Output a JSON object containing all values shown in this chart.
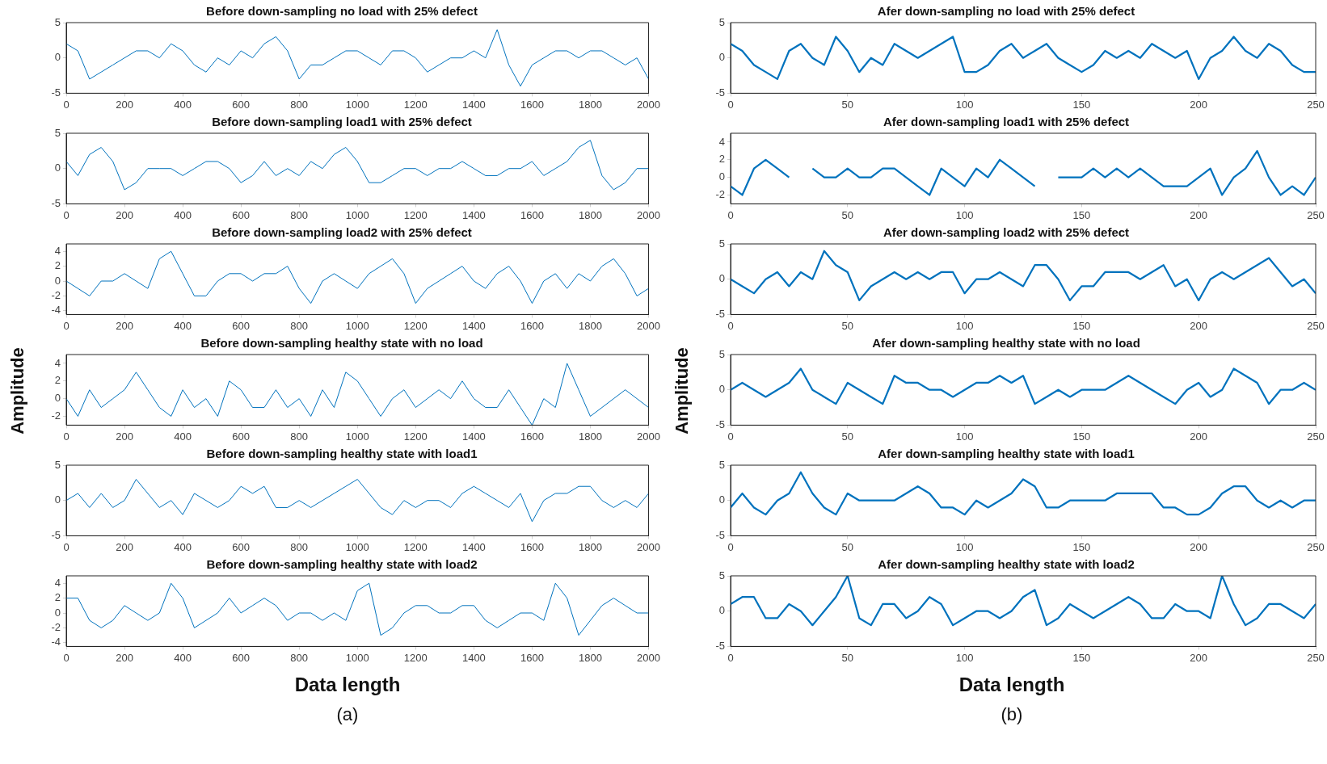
{
  "chart_data": [
    {
      "type": "line",
      "title": "Before down-sampling no load with 25% defect",
      "color": "#0072bd",
      "grid": false,
      "xlim": [
        0,
        2000
      ],
      "xticks": [
        0,
        200,
        400,
        600,
        800,
        1000,
        1200,
        1400,
        1600,
        1800,
        2000
      ],
      "ylim": [
        -5,
        5
      ],
      "yticks": [
        -5,
        0,
        5
      ],
      "x": [
        0,
        40,
        80,
        120,
        160,
        200,
        240,
        280,
        320,
        360,
        400,
        440,
        480,
        520,
        560,
        600,
        640,
        680,
        720,
        760,
        800,
        840,
        880,
        920,
        960,
        1000,
        1040,
        1080,
        1120,
        1160,
        1200,
        1240,
        1280,
        1320,
        1360,
        1400,
        1440,
        1480,
        1520,
        1560,
        1600,
        1640,
        1680,
        1720,
        1760,
        1800,
        1840,
        1880,
        1920,
        1960,
        2000
      ],
      "values": [
        2,
        1,
        -3,
        -2,
        -1,
        0,
        1,
        1,
        0,
        2,
        1,
        -1,
        -2,
        0,
        -1,
        1,
        0,
        2,
        3,
        1,
        -3,
        -1,
        -1,
        0,
        1,
        1,
        0,
        -1,
        1,
        1,
        0,
        -2,
        -1,
        0,
        0,
        1,
        0,
        4,
        -1,
        -4,
        -1,
        0,
        1,
        1,
        0,
        1,
        1,
        0,
        -1,
        0,
        -3
      ]
    },
    {
      "type": "line",
      "title": "Before down-sampling load1 with 25% defect",
      "color": "#0072bd",
      "grid": false,
      "xlim": [
        0,
        2000
      ],
      "xticks": [
        0,
        200,
        400,
        600,
        800,
        1000,
        1200,
        1400,
        1600,
        1800,
        2000
      ],
      "ylim": [
        -5,
        5
      ],
      "yticks": [
        -5,
        0,
        5
      ],
      "x": [
        0,
        40,
        80,
        120,
        160,
        200,
        240,
        280,
        320,
        360,
        400,
        440,
        480,
        520,
        560,
        600,
        640,
        680,
        720,
        760,
        800,
        840,
        880,
        920,
        960,
        1000,
        1040,
        1080,
        1120,
        1160,
        1200,
        1240,
        1280,
        1320,
        1360,
        1400,
        1440,
        1480,
        1520,
        1560,
        1600,
        1640,
        1680,
        1720,
        1760,
        1800,
        1840,
        1880,
        1920,
        1960,
        2000
      ],
      "values": [
        1,
        -1,
        2,
        3,
        1,
        -3,
        -2,
        0,
        0,
        0,
        -1,
        0,
        1,
        1,
        0,
        -2,
        -1,
        1,
        -1,
        0,
        -1,
        1,
        0,
        2,
        3,
        1,
        -2,
        -2,
        -1,
        0,
        0,
        -1,
        0,
        0,
        1,
        0,
        -1,
        -1,
        0,
        0,
        1,
        -1,
        0,
        1,
        3,
        4,
        -1,
        -3,
        -2,
        0,
        0
      ]
    },
    {
      "type": "line",
      "title": "Before down-sampling load2 with 25% defect",
      "color": "#0072bd",
      "grid": false,
      "xlim": [
        0,
        2000
      ],
      "xticks": [
        0,
        200,
        400,
        600,
        800,
        1000,
        1200,
        1400,
        1600,
        1800,
        2000
      ],
      "ylim": [
        -4.5,
        5
      ],
      "yticks": [
        -4,
        -2,
        0,
        2,
        4
      ],
      "x": [
        0,
        40,
        80,
        120,
        160,
        200,
        240,
        280,
        320,
        360,
        400,
        440,
        480,
        520,
        560,
        600,
        640,
        680,
        720,
        760,
        800,
        840,
        880,
        920,
        960,
        1000,
        1040,
        1080,
        1120,
        1160,
        1200,
        1240,
        1280,
        1320,
        1360,
        1400,
        1440,
        1480,
        1520,
        1560,
        1600,
        1640,
        1680,
        1720,
        1760,
        1800,
        1840,
        1880,
        1920,
        1960,
        2000
      ],
      "values": [
        0,
        -1,
        -2,
        0,
        0,
        1,
        0,
        -1,
        3,
        4,
        1,
        -2,
        -2,
        0,
        1,
        1,
        0,
        1,
        1,
        2,
        -1,
        -3,
        0,
        1,
        0,
        -1,
        1,
        2,
        3,
        1,
        -3,
        -1,
        0,
        1,
        2,
        0,
        -1,
        1,
        2,
        0,
        -3,
        0,
        1,
        -1,
        1,
        0,
        2,
        3,
        1,
        -2,
        -1
      ]
    },
    {
      "type": "line",
      "title": "Before down-sampling healthy state with no load",
      "ylabel": "Amplitude",
      "color": "#0072bd",
      "grid": false,
      "xlim": [
        0,
        2000
      ],
      "xticks": [
        0,
        200,
        400,
        600,
        800,
        1000,
        1200,
        1400,
        1600,
        1800,
        2000
      ],
      "ylim": [
        -3,
        5
      ],
      "yticks": [
        -2,
        0,
        2,
        4
      ],
      "x": [
        0,
        40,
        80,
        120,
        160,
        200,
        240,
        280,
        320,
        360,
        400,
        440,
        480,
        520,
        560,
        600,
        640,
        680,
        720,
        760,
        800,
        840,
        880,
        920,
        960,
        1000,
        1040,
        1080,
        1120,
        1160,
        1200,
        1240,
        1280,
        1320,
        1360,
        1400,
        1440,
        1480,
        1520,
        1560,
        1600,
        1640,
        1680,
        1720,
        1760,
        1800,
        1840,
        1880,
        1920,
        1960,
        2000
      ],
      "values": [
        0,
        -2,
        1,
        -1,
        0,
        1,
        3,
        1,
        -1,
        -2,
        1,
        -1,
        0,
        -2,
        2,
        1,
        -1,
        -1,
        1,
        -1,
        0,
        -2,
        1,
        -1,
        3,
        2,
        0,
        -2,
        0,
        1,
        -1,
        0,
        1,
        0,
        2,
        0,
        -1,
        -1,
        1,
        -1,
        -3,
        0,
        -1,
        4,
        1,
        -2,
        -1,
        0,
        1,
        0,
        -1
      ]
    },
    {
      "type": "line",
      "title": "Before down-sampling healthy state with load1",
      "color": "#0072bd",
      "grid": false,
      "xlim": [
        0,
        2000
      ],
      "xticks": [
        0,
        200,
        400,
        600,
        800,
        1000,
        1200,
        1400,
        1600,
        1800,
        2000
      ],
      "ylim": [
        -5,
        5
      ],
      "yticks": [
        -5,
        0,
        5
      ],
      "x": [
        0,
        40,
        80,
        120,
        160,
        200,
        240,
        280,
        320,
        360,
        400,
        440,
        480,
        520,
        560,
        600,
        640,
        680,
        720,
        760,
        800,
        840,
        880,
        920,
        960,
        1000,
        1040,
        1080,
        1120,
        1160,
        1200,
        1240,
        1280,
        1320,
        1360,
        1400,
        1440,
        1480,
        1520,
        1560,
        1600,
        1640,
        1680,
        1720,
        1760,
        1800,
        1840,
        1880,
        1920,
        1960,
        2000
      ],
      "values": [
        0,
        1,
        -1,
        1,
        -1,
        0,
        3,
        1,
        -1,
        0,
        -2,
        1,
        0,
        -1,
        0,
        2,
        1,
        2,
        -1,
        -1,
        0,
        -1,
        0,
        1,
        2,
        3,
        1,
        -1,
        -2,
        0,
        -1,
        0,
        0,
        -1,
        1,
        2,
        1,
        0,
        -1,
        1,
        -3,
        0,
        1,
        1,
        2,
        2,
        0,
        -1,
        0,
        -1,
        1
      ]
    },
    {
      "type": "line",
      "title": "Before down-sampling healthy state with load2",
      "xlabel": "Data length",
      "annotations": [
        "(a)"
      ],
      "color": "#0072bd",
      "grid": false,
      "xlim": [
        0,
        2000
      ],
      "xticks": [
        0,
        200,
        400,
        600,
        800,
        1000,
        1200,
        1400,
        1600,
        1800,
        2000
      ],
      "ylim": [
        -4.5,
        5
      ],
      "yticks": [
        -4,
        -2,
        0,
        2,
        4
      ],
      "x": [
        0,
        40,
        80,
        120,
        160,
        200,
        240,
        280,
        320,
        360,
        400,
        440,
        480,
        520,
        560,
        600,
        640,
        680,
        720,
        760,
        800,
        840,
        880,
        920,
        960,
        1000,
        1040,
        1080,
        1120,
        1160,
        1200,
        1240,
        1280,
        1320,
        1360,
        1400,
        1440,
        1480,
        1520,
        1560,
        1600,
        1640,
        1680,
        1720,
        1760,
        1800,
        1840,
        1880,
        1920,
        1960,
        2000
      ],
      "values": [
        2,
        2,
        -1,
        -2,
        -1,
        1,
        0,
        -1,
        0,
        4,
        2,
        -2,
        -1,
        0,
        2,
        0,
        1,
        2,
        1,
        -1,
        0,
        0,
        -1,
        0,
        -1,
        3,
        4,
        -3,
        -2,
        0,
        1,
        1,
        0,
        0,
        1,
        1,
        -1,
        -2,
        -1,
        0,
        0,
        -1,
        4,
        2,
        -3,
        -1,
        1,
        2,
        1,
        0,
        0
      ]
    },
    {
      "type": "line",
      "title": "Afer down-sampling no load with 25% defect",
      "color": "#0072bd",
      "grid": false,
      "xlim": [
        0,
        250
      ],
      "xticks": [
        0,
        50,
        100,
        150,
        200,
        250
      ],
      "ylim": [
        -5,
        5
      ],
      "yticks": [
        -5,
        0,
        5
      ],
      "x": [
        0,
        5,
        10,
        15,
        20,
        25,
        30,
        35,
        40,
        45,
        50,
        55,
        60,
        65,
        70,
        75,
        80,
        85,
        90,
        95,
        100,
        105,
        110,
        115,
        120,
        125,
        130,
        135,
        140,
        145,
        150,
        155,
        160,
        165,
        170,
        175,
        180,
        185,
        190,
        195,
        200,
        205,
        210,
        215,
        220,
        225,
        230,
        235,
        240,
        245,
        250
      ],
      "values": [
        2,
        1,
        -1,
        -2,
        -3,
        1,
        2,
        0,
        -1,
        3,
        1,
        -2,
        0,
        -1,
        2,
        1,
        0,
        1,
        2,
        3,
        -2,
        -2,
        -1,
        1,
        2,
        0,
        1,
        2,
        0,
        -1,
        -2,
        -1,
        1,
        0,
        1,
        0,
        2,
        1,
        0,
        1,
        -3,
        0,
        1,
        3,
        1,
        0,
        2,
        1,
        -1,
        -2,
        -2
      ]
    },
    {
      "type": "line",
      "title": "Afer down-sampling load1 with 25% defect",
      "color": "#0072bd",
      "grid": false,
      "xlim": [
        0,
        250
      ],
      "xticks": [
        0,
        50,
        100,
        150,
        200,
        250
      ],
      "ylim": [
        -3,
        5
      ],
      "yticks": [
        -2,
        0,
        2,
        4
      ],
      "x": [
        0,
        5,
        10,
        15,
        20,
        25,
        30,
        35,
        40,
        45,
        50,
        55,
        60,
        65,
        70,
        75,
        80,
        85,
        90,
        95,
        100,
        105,
        110,
        115,
        120,
        125,
        130,
        135,
        140,
        145,
        150,
        155,
        160,
        165,
        170,
        175,
        180,
        185,
        190,
        195,
        200,
        205,
        210,
        215,
        220,
        225,
        230,
        235,
        240,
        245,
        250
      ],
      "values": [
        -1,
        -2,
        1,
        2,
        1,
        0,
        null,
        1,
        0,
        0,
        1,
        0,
        0,
        1,
        1,
        0,
        -1,
        -2,
        1,
        0,
        -1,
        1,
        0,
        2,
        1,
        0,
        -1,
        null,
        0,
        0,
        0,
        1,
        0,
        1,
        0,
        1,
        0,
        -1,
        -1,
        -1,
        0,
        1,
        -2,
        0,
        1,
        3,
        0,
        -2,
        -1,
        -2,
        0
      ]
    },
    {
      "type": "line",
      "title": "Afer down-sampling load2 with 25% defect",
      "color": "#0072bd",
      "grid": false,
      "xlim": [
        0,
        250
      ],
      "xticks": [
        0,
        50,
        100,
        150,
        200,
        250
      ],
      "ylim": [
        -5,
        5
      ],
      "yticks": [
        -5,
        0,
        5
      ],
      "x": [
        0,
        5,
        10,
        15,
        20,
        25,
        30,
        35,
        40,
        45,
        50,
        55,
        60,
        65,
        70,
        75,
        80,
        85,
        90,
        95,
        100,
        105,
        110,
        115,
        120,
        125,
        130,
        135,
        140,
        145,
        150,
        155,
        160,
        165,
        170,
        175,
        180,
        185,
        190,
        195,
        200,
        205,
        210,
        215,
        220,
        225,
        230,
        235,
        240,
        245,
        250
      ],
      "values": [
        0,
        -1,
        -2,
        0,
        1,
        -1,
        1,
        0,
        4,
        2,
        1,
        -3,
        -1,
        0,
        1,
        0,
        1,
        0,
        1,
        1,
        -2,
        0,
        0,
        1,
        0,
        -1,
        2,
        2,
        0,
        -3,
        -1,
        -1,
        1,
        1,
        1,
        0,
        1,
        2,
        -1,
        0,
        -3,
        0,
        1,
        0,
        1,
        2,
        3,
        1,
        -1,
        0,
        -2
      ]
    },
    {
      "type": "line",
      "title": "Afer down-sampling healthy state with no load",
      "ylabel": "Amplitude",
      "color": "#0072bd",
      "grid": false,
      "xlim": [
        0,
        250
      ],
      "xticks": [
        0,
        50,
        100,
        150,
        200,
        250
      ],
      "ylim": [
        -5,
        5
      ],
      "yticks": [
        -5,
        0,
        5
      ],
      "x": [
        0,
        5,
        10,
        15,
        20,
        25,
        30,
        35,
        40,
        45,
        50,
        55,
        60,
        65,
        70,
        75,
        80,
        85,
        90,
        95,
        100,
        105,
        110,
        115,
        120,
        125,
        130,
        135,
        140,
        145,
        150,
        155,
        160,
        165,
        170,
        175,
        180,
        185,
        190,
        195,
        200,
        205,
        210,
        215,
        220,
        225,
        230,
        235,
        240,
        245,
        250
      ],
      "values": [
        0,
        1,
        0,
        -1,
        0,
        1,
        3,
        0,
        -1,
        -2,
        1,
        0,
        -1,
        -2,
        2,
        1,
        1,
        0,
        0,
        -1,
        0,
        1,
        1,
        2,
        1,
        2,
        -2,
        -1,
        0,
        -1,
        0,
        0,
        0,
        1,
        2,
        1,
        0,
        -1,
        -2,
        0,
        1,
        -1,
        0,
        3,
        2,
        1,
        -2,
        0,
        0,
        1,
        0
      ]
    },
    {
      "type": "line",
      "title": "Afer down-sampling healthy state with load1",
      "color": "#0072bd",
      "grid": false,
      "xlim": [
        0,
        250
      ],
      "xticks": [
        0,
        50,
        100,
        150,
        200,
        250
      ],
      "ylim": [
        -5,
        5
      ],
      "yticks": [
        -5,
        0,
        5
      ],
      "x": [
        0,
        5,
        10,
        15,
        20,
        25,
        30,
        35,
        40,
        45,
        50,
        55,
        60,
        65,
        70,
        75,
        80,
        85,
        90,
        95,
        100,
        105,
        110,
        115,
        120,
        125,
        130,
        135,
        140,
        145,
        150,
        155,
        160,
        165,
        170,
        175,
        180,
        185,
        190,
        195,
        200,
        205,
        210,
        215,
        220,
        225,
        230,
        235,
        240,
        245,
        250
      ],
      "values": [
        -1,
        1,
        -1,
        -2,
        0,
        1,
        4,
        1,
        -1,
        -2,
        1,
        0,
        0,
        0,
        0,
        1,
        2,
        1,
        -1,
        -1,
        -2,
        0,
        -1,
        0,
        1,
        3,
        2,
        -1,
        -1,
        0,
        0,
        0,
        0,
        1,
        1,
        1,
        1,
        -1,
        -1,
        -2,
        -2,
        -1,
        1,
        2,
        2,
        0,
        -1,
        0,
        -1,
        0,
        0
      ]
    },
    {
      "type": "line",
      "title": "Afer down-sampling healthy state with load2",
      "xlabel": "Data length",
      "annotations": [
        "(b)"
      ],
      "color": "#0072bd",
      "grid": false,
      "xlim": [
        0,
        250
      ],
      "xticks": [
        0,
        50,
        100,
        150,
        200,
        250
      ],
      "ylim": [
        -5,
        5
      ],
      "yticks": [
        -5,
        0,
        5
      ],
      "x": [
        0,
        5,
        10,
        15,
        20,
        25,
        30,
        35,
        40,
        45,
        50,
        55,
        60,
        65,
        70,
        75,
        80,
        85,
        90,
        95,
        100,
        105,
        110,
        115,
        120,
        125,
        130,
        135,
        140,
        145,
        150,
        155,
        160,
        165,
        170,
        175,
        180,
        185,
        190,
        195,
        200,
        205,
        210,
        215,
        220,
        225,
        230,
        235,
        240,
        245,
        250
      ],
      "values": [
        1,
        2,
        2,
        -1,
        -1,
        1,
        0,
        -2,
        0,
        2,
        5,
        -1,
        -2,
        1,
        1,
        -1,
        0,
        2,
        1,
        -2,
        -1,
        0,
        0,
        -1,
        0,
        2,
        3,
        -2,
        -1,
        1,
        0,
        -1,
        0,
        1,
        2,
        1,
        -1,
        -1,
        1,
        0,
        0,
        -1,
        5,
        1,
        -2,
        -1,
        1,
        1,
        0,
        -1,
        1
      ]
    }
  ]
}
